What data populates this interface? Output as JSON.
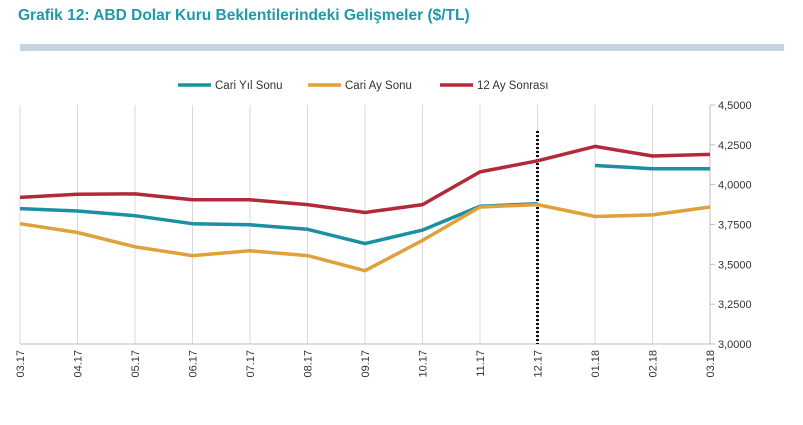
{
  "page": {
    "title": "Grafik 12: ABD Dolar Kuru Beklentilerindeki Gelişmeler ($/TL)"
  },
  "colors": {
    "title": "#1d9aa8",
    "rule": "#c8d3e0",
    "grid": "#d9d9d9"
  },
  "chart_data": {
    "type": "line",
    "title": "Grafik 12: ABD Dolar Kuru Beklentilerindeki Gelişmeler ($/TL)",
    "categories": [
      "03.17",
      "04.17",
      "05.17",
      "06.17",
      "07.17",
      "08.17",
      "09.17",
      "10.17",
      "11.17",
      "12.17",
      "01.18",
      "02.18",
      "03.18"
    ],
    "ylim": [
      3.0,
      4.5
    ],
    "yticks": [
      "3,0000",
      "3,2500",
      "3,5000",
      "3,7500",
      "4,0000",
      "4,2500",
      "4,5000"
    ],
    "ytick_values": [
      3.0,
      3.25,
      3.5,
      3.75,
      4.0,
      4.25,
      4.5
    ],
    "y_axis_side": "right",
    "grid": "vertical",
    "legend_position": "top",
    "vline_category": "12.17",
    "series": [
      {
        "name": "Cari Yıl Sonu",
        "color": "#1b8fa3",
        "values": [
          3.85,
          3.835,
          3.805,
          3.755,
          3.748,
          3.72,
          3.63,
          3.715,
          3.865,
          3.88,
          null,
          null,
          null
        ]
      },
      {
        "name": "Cari Yıl Sonu",
        "color": "#1b8fa3",
        "values": [
          null,
          null,
          null,
          null,
          null,
          null,
          null,
          null,
          null,
          null,
          4.12,
          4.1,
          4.1
        ]
      },
      {
        "name": "Cari Ay Sonu",
        "color": "#e0a03a",
        "values": [
          3.755,
          3.7,
          3.61,
          3.555,
          3.585,
          3.555,
          3.46,
          3.65,
          3.86,
          3.875,
          3.8,
          3.81,
          3.86
        ]
      },
      {
        "name": "12 Ay Sonrası",
        "color": "#b22a3a",
        "values": [
          3.92,
          3.94,
          3.942,
          3.905,
          3.905,
          3.875,
          3.825,
          3.875,
          4.08,
          4.15,
          4.24,
          4.18,
          4.19
        ]
      }
    ]
  }
}
